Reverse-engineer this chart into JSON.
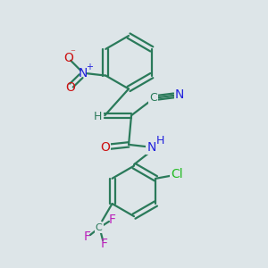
{
  "bg_color": "#dde5e8",
  "bond_color": "#2a7a5a",
  "N_color": "#2222dd",
  "O_color": "#cc1111",
  "Cl_color": "#22bb22",
  "F_color": "#bb22bb",
  "figsize": [
    3.0,
    3.0
  ],
  "dpi": 100,
  "xlim": [
    0,
    10
  ],
  "ylim": [
    0,
    10
  ]
}
